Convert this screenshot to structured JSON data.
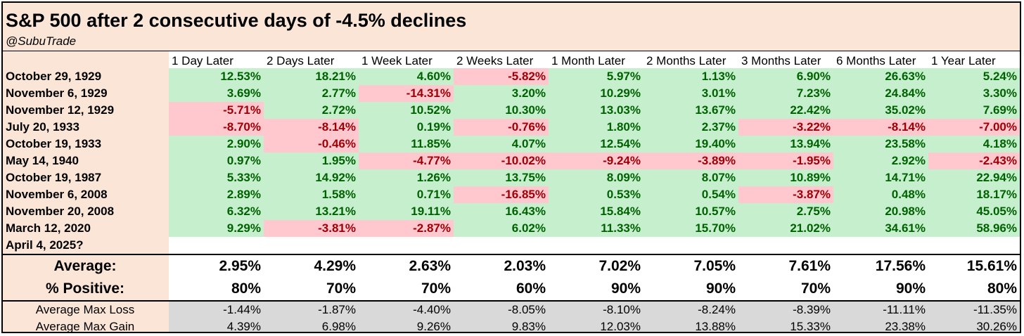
{
  "title": "S&P 500 after 2 consecutive days of -4.5% declines",
  "handle": "@SubuTrade",
  "chart_data": {
    "type": "table",
    "columns": [
      "1 Day Later",
      "2 Days Later",
      "1 Week Later",
      "2 Weeks Later",
      "1 Month Later",
      "2 Months Later",
      "3 Months Later",
      "6 Months Later",
      "1 Year Later"
    ],
    "rows": [
      {
        "date": "October 29, 1929",
        "values": [
          "12.53%",
          "18.21%",
          "4.60%",
          "-5.82%",
          "5.97%",
          "1.13%",
          "6.90%",
          "26.63%",
          "5.24%"
        ]
      },
      {
        "date": "November 6, 1929",
        "values": [
          "3.69%",
          "2.77%",
          "-14.31%",
          "3.20%",
          "10.29%",
          "3.01%",
          "7.23%",
          "24.84%",
          "3.30%"
        ]
      },
      {
        "date": "November 12, 1929",
        "values": [
          "-5.71%",
          "2.72%",
          "10.52%",
          "10.30%",
          "13.03%",
          "13.67%",
          "22.42%",
          "35.02%",
          "7.69%"
        ]
      },
      {
        "date": "July 20, 1933",
        "values": [
          "-8.70%",
          "-8.14%",
          "0.19%",
          "-0.76%",
          "1.80%",
          "2.37%",
          "-3.22%",
          "-8.14%",
          "-7.00%"
        ]
      },
      {
        "date": "October 19, 1933",
        "values": [
          "2.90%",
          "-0.46%",
          "11.85%",
          "4.07%",
          "12.54%",
          "19.40%",
          "13.94%",
          "23.58%",
          "4.18%"
        ]
      },
      {
        "date": "May 14, 1940",
        "values": [
          "0.97%",
          "1.95%",
          "-4.77%",
          "-10.02%",
          "-9.24%",
          "-3.89%",
          "-1.95%",
          "2.92%",
          "-2.43%"
        ]
      },
      {
        "date": "October 19, 1987",
        "values": [
          "5.33%",
          "14.92%",
          "1.26%",
          "13.75%",
          "8.09%",
          "8.07%",
          "10.89%",
          "14.71%",
          "22.94%"
        ]
      },
      {
        "date": "November 6, 2008",
        "values": [
          "2.89%",
          "1.58%",
          "0.71%",
          "-16.85%",
          "0.53%",
          "0.54%",
          "-3.87%",
          "0.48%",
          "18.17%"
        ]
      },
      {
        "date": "November 20, 2008",
        "values": [
          "6.32%",
          "13.21%",
          "19.11%",
          "16.43%",
          "15.84%",
          "10.57%",
          "2.75%",
          "20.98%",
          "45.05%"
        ]
      },
      {
        "date": "March 12, 2020",
        "values": [
          "9.29%",
          "-3.81%",
          "-2.87%",
          "6.02%",
          "11.33%",
          "15.70%",
          "21.02%",
          "34.61%",
          "58.96%"
        ]
      },
      {
        "date": "April 4, 2025?",
        "values": [
          "",
          "",
          "",
          "",
          "",
          "",
          "",
          "",
          ""
        ]
      }
    ],
    "summary": [
      {
        "label": "Average:",
        "values": [
          "2.95%",
          "4.29%",
          "2.63%",
          "2.03%",
          "7.02%",
          "7.05%",
          "7.61%",
          "17.56%",
          "15.61%"
        ]
      },
      {
        "label": "% Positive:",
        "values": [
          "80%",
          "70%",
          "70%",
          "60%",
          "90%",
          "90%",
          "70%",
          "90%",
          "80%"
        ]
      }
    ],
    "max_stats": [
      {
        "label": "Average Max Loss",
        "values": [
          "-1.44%",
          "-1.87%",
          "-4.40%",
          "-8.05%",
          "-8.10%",
          "-8.24%",
          "-8.39%",
          "-11.11%",
          "-11.35%"
        ]
      },
      {
        "label": "Average Max Gain",
        "values": [
          "4.39%",
          "6.98%",
          "9.26%",
          "9.83%",
          "12.03%",
          "13.88%",
          "15.33%",
          "23.38%",
          "30.26%"
        ]
      }
    ]
  },
  "colors": {
    "positive_fill": "#c6efce",
    "positive_text": "#006100",
    "negative_fill": "#ffc7ce",
    "negative_text": "#9c0006",
    "header_fill": "#fbe5d6",
    "stats_fill": "#d9d9d9"
  }
}
